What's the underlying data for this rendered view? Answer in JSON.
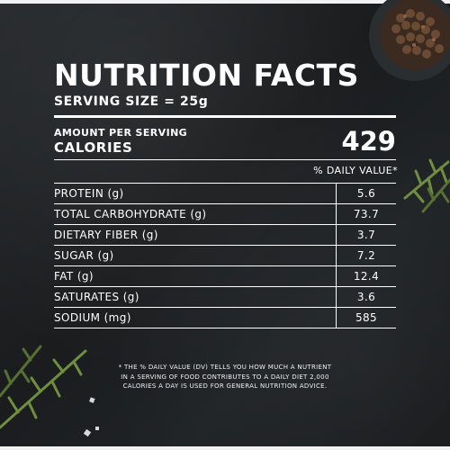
{
  "title": "NUTRITION FACTS",
  "serving_size": "SERVING SIZE = 25g",
  "amount_per_serving": "AMOUNT PER SERVING",
  "calories_label": "CALORIES",
  "calories_value": "429",
  "daily_value_header": "% DAILY VALUE*",
  "nutrients": [
    {
      "label": "PROTEIN (g)",
      "value": "5.6"
    },
    {
      "label": "TOTAL CARBOHYDRATE (g)",
      "value": "73.7"
    },
    {
      "label": "DIETARY FIBER (g)",
      "value": "3.7"
    },
    {
      "label": "SUGAR (g)",
      "value": "7.2"
    },
    {
      "label": "FAT (g)",
      "value": "12.4"
    },
    {
      "label": "SATURATES (g)",
      "value": "3.6"
    },
    {
      "label": "SODIUM (mg)",
      "value": "585"
    }
  ],
  "footnote": [
    "* THE % DAILY VALUE (DV) TELLS YOU HOW MUCH A NUTRIENT",
    "IN A SERVING OF FOOD CONTRIBUTES TO A DAILY DIET 2,000",
    "CALORIES A DAY IS USED FOR GENERAL NUTRITION ADVICE."
  ]
}
